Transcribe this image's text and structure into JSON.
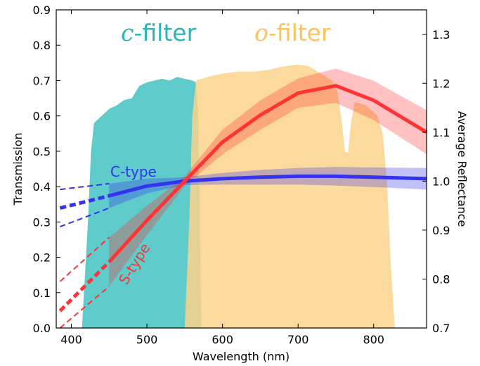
{
  "chart_data": {
    "type": "line",
    "xlabel": "Wavelength (nm)",
    "ylabel": "Transmission",
    "ylabel_right": "Average Reflectance",
    "xlim": [
      380,
      870
    ],
    "ylim": [
      0.0,
      0.9
    ],
    "ylim_right": [
      0.7,
      1.35
    ],
    "xticks": [
      400,
      500,
      600,
      700,
      800
    ],
    "yticks": [
      0.0,
      0.1,
      0.2,
      0.3,
      0.4,
      0.5,
      0.6,
      0.7,
      0.8,
      0.9
    ],
    "yticks_right": [
      0.7,
      0.8,
      0.9,
      1.0,
      1.1,
      1.2,
      1.3
    ],
    "grid": false,
    "filters": [
      {
        "name": "c-filter",
        "letter": "c",
        "suffix": "-filter",
        "color": "#5fcbcb",
        "label_color": "#29b5b5",
        "transmission": [
          [
            414,
            0.0
          ],
          [
            418,
            0.15
          ],
          [
            422,
            0.3
          ],
          [
            426,
            0.5
          ],
          [
            430,
            0.58
          ],
          [
            440,
            0.6
          ],
          [
            450,
            0.62
          ],
          [
            460,
            0.63
          ],
          [
            470,
            0.645
          ],
          [
            480,
            0.65
          ],
          [
            490,
            0.685
          ],
          [
            500,
            0.695
          ],
          [
            510,
            0.7
          ],
          [
            520,
            0.705
          ],
          [
            530,
            0.7
          ],
          [
            540,
            0.71
          ],
          [
            550,
            0.705
          ],
          [
            560,
            0.7
          ],
          [
            565,
            0.695
          ],
          [
            568,
            0.6
          ],
          [
            570,
            0.3
          ],
          [
            572,
            0.0
          ]
        ]
      },
      {
        "name": "o-filter",
        "letter": "o",
        "suffix": "-filter",
        "color": "#fcd38c",
        "label_color": "#fcc45a",
        "transmission": [
          [
            550,
            0.0
          ],
          [
            556,
            0.3
          ],
          [
            560,
            0.6
          ],
          [
            565,
            0.7
          ],
          [
            580,
            0.71
          ],
          [
            600,
            0.72
          ],
          [
            620,
            0.725
          ],
          [
            640,
            0.725
          ],
          [
            660,
            0.73
          ],
          [
            680,
            0.74
          ],
          [
            700,
            0.745
          ],
          [
            715,
            0.74
          ],
          [
            730,
            0.72
          ],
          [
            745,
            0.7
          ],
          [
            752,
            0.67
          ],
          [
            758,
            0.58
          ],
          [
            762,
            0.5
          ],
          [
            766,
            0.495
          ],
          [
            770,
            0.58
          ],
          [
            775,
            0.64
          ],
          [
            790,
            0.63
          ],
          [
            805,
            0.6
          ],
          [
            812,
            0.55
          ],
          [
            818,
            0.4
          ],
          [
            822,
            0.2
          ],
          [
            828,
            0.0
          ]
        ]
      }
    ],
    "series": [
      {
        "name": "C-type",
        "color": "#3333ee",
        "axis": "right",
        "x": [
          450,
          500,
          550,
          600,
          650,
          700,
          750,
          800,
          870
        ],
        "values": [
          0.97,
          0.99,
          1.0,
          1.005,
          1.008,
          1.01,
          1.01,
          1.008,
          1.005
        ],
        "band_low": [
          0.945,
          0.975,
          0.992,
          0.993,
          0.993,
          0.993,
          0.991,
          0.988,
          0.983
        ],
        "band_high": [
          0.995,
          1.005,
          1.008,
          1.017,
          1.023,
          1.027,
          1.029,
          1.028,
          1.027
        ],
        "extrapolation": {
          "x": [
            385,
            450
          ],
          "values": [
            0.945,
            0.97
          ],
          "low": [
            0.907,
            0.945
          ],
          "high": [
            0.983,
            0.995
          ]
        }
      },
      {
        "name": "S-type",
        "color": "#ff3333",
        "axis": "right",
        "x": [
          450,
          500,
          550,
          600,
          650,
          700,
          750,
          800,
          870
        ],
        "values": [
          0.835,
          0.92,
          1.0,
          1.08,
          1.135,
          1.18,
          1.195,
          1.165,
          1.1
        ],
        "band_low": [
          0.785,
          0.89,
          0.99,
          1.055,
          1.105,
          1.15,
          1.16,
          1.125,
          1.055
        ],
        "band_high": [
          0.885,
          0.95,
          1.01,
          1.105,
          1.165,
          1.21,
          1.23,
          1.205,
          1.145
        ],
        "extrapolation": {
          "x": [
            385,
            450
          ],
          "values": [
            0.735,
            0.835
          ],
          "low": [
            0.7,
            0.785
          ],
          "high": [
            0.795,
            0.885
          ]
        }
      }
    ]
  }
}
